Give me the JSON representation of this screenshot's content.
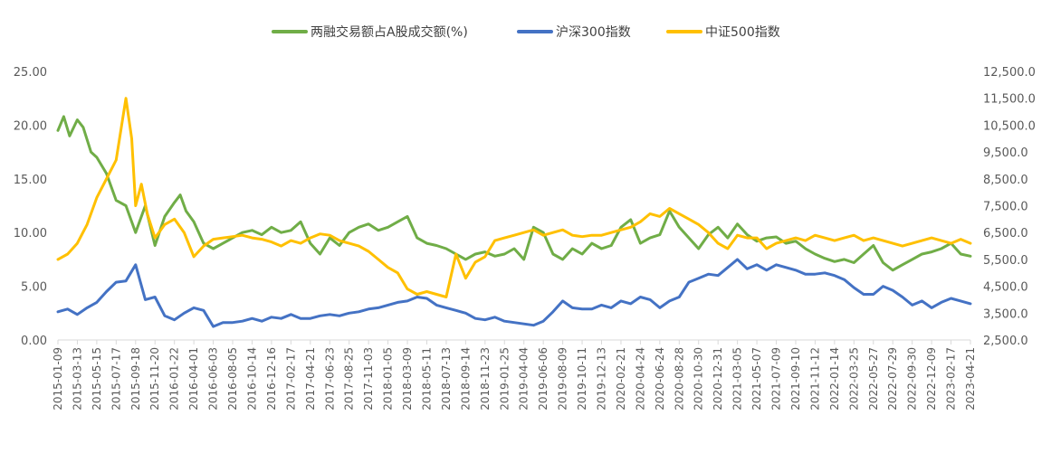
{
  "chart_data": {
    "type": "line",
    "title": "",
    "legend_position": "top-center",
    "grid": false,
    "x_tick_labels": [
      "2015-01-09",
      "2015-03-13",
      "2015-05-15",
      "2015-07-17",
      "2015-09-18",
      "2015-11-20",
      "2016-01-22",
      "2016-04-01",
      "2016-06-03",
      "2016-08-05",
      "2016-10-14",
      "2016-12-16",
      "2017-02-17",
      "2017-04-21",
      "2017-06-23",
      "2017-08-25",
      "2017-11-03",
      "2018-01-05",
      "2018-03-09",
      "2018-05-11",
      "2018-07-13",
      "2018-09-14",
      "2018-11-23",
      "2019-01-25",
      "2019-04-04",
      "2019-06-06",
      "2019-08-09",
      "2019-10-11",
      "2019-12-13",
      "2020-02-21",
      "2020-04-24",
      "2020-06-24",
      "2020-08-28",
      "2020-10-30",
      "2020-12-31",
      "2021-03-05",
      "2021-05-07",
      "2021-07-09",
      "2021-09-10",
      "2021-11-12",
      "2022-01-14",
      "2022-03-25",
      "2022-05-27",
      "2022-07-29",
      "2022-09-30",
      "2022-12-09",
      "2023-02-17",
      "2023-04-21"
    ],
    "y_left": {
      "range": [
        0,
        25
      ],
      "ticks": [
        "0.00",
        "5.00",
        "10.00",
        "15.00",
        "20.00",
        "25.00"
      ],
      "tick_values": [
        0,
        5,
        10,
        15,
        20,
        25
      ]
    },
    "y_right": {
      "range": [
        2500,
        12500
      ],
      "ticks": [
        "2,500.0",
        "3,500.0",
        "4,500.0",
        "5,500.0",
        "6,500.0",
        "7,500.0",
        "8,500.0",
        "9,500.0",
        "10,500.0",
        "11,500.0",
        "12,500.0"
      ],
      "tick_values": [
        2500,
        3500,
        4500,
        5500,
        6500,
        7500,
        8500,
        9500,
        10500,
        11500,
        12500
      ]
    },
    "series": [
      {
        "name": "两融交易额占A股成交额(%)",
        "color": "#70AD47",
        "axis": "left",
        "x": [
          0,
          0.3,
          0.6,
          1,
          1.3,
          1.7,
          2,
          2.5,
          3,
          3.5,
          4,
          4.5,
          5,
          5.5,
          6,
          6.3,
          6.6,
          7,
          7.5,
          8,
          8.5,
          9,
          9.5,
          10,
          10.5,
          11,
          11.5,
          12,
          12.5,
          13,
          13.5,
          14,
          14.5,
          15,
          15.5,
          16,
          16.5,
          17,
          17.5,
          18,
          18.5,
          19,
          19.5,
          20,
          20.5,
          21,
          21.5,
          22,
          22.5,
          23,
          23.5,
          24,
          24.5,
          25,
          25.5,
          26,
          26.5,
          27,
          27.5,
          28,
          28.5,
          29,
          29.5,
          30,
          30.5,
          31,
          31.5,
          32,
          32.5,
          33,
          33.5,
          34,
          34.5,
          35,
          35.5,
          36,
          36.5,
          37,
          37.5,
          38,
          38.5,
          39,
          39.5,
          40,
          40.5,
          41,
          41.5,
          42,
          42.5,
          43,
          43.5,
          44,
          44.5,
          45,
          45.5,
          46,
          46.5,
          47
        ],
        "values": [
          19.5,
          20.8,
          19.0,
          20.5,
          19.8,
          17.5,
          17.0,
          15.5,
          13.0,
          12.5,
          10.0,
          12.5,
          8.8,
          11.5,
          12.8,
          13.5,
          12.0,
          11.0,
          9.0,
          8.5,
          9.0,
          9.5,
          10.0,
          10.2,
          9.8,
          10.5,
          10.0,
          10.2,
          11.0,
          9.0,
          8.0,
          9.5,
          8.8,
          10.0,
          10.5,
          10.8,
          10.2,
          10.5,
          11.0,
          11.5,
          9.5,
          9.0,
          8.8,
          8.5,
          8.0,
          7.5,
          8.0,
          8.2,
          7.8,
          8.0,
          8.5,
          7.5,
          10.5,
          10.0,
          8.0,
          7.5,
          8.5,
          8.0,
          9.0,
          8.5,
          8.8,
          10.5,
          11.2,
          9.0,
          9.5,
          9.8,
          12.0,
          10.5,
          9.5,
          8.5,
          9.8,
          10.5,
          9.5,
          10.8,
          9.8,
          9.2,
          9.5,
          9.6,
          9.0,
          9.2,
          8.5,
          8.0,
          7.6,
          7.3,
          7.5,
          7.2,
          8.0,
          8.8,
          7.2,
          6.5,
          7.0,
          7.5,
          8.0,
          8.2,
          8.5,
          9.0,
          8.0,
          7.8
        ]
      },
      {
        "name": "沪深300指数",
        "color": "#4472C4",
        "axis": "right",
        "x": [
          0,
          0.5,
          1,
          1.5,
          2,
          2.5,
          3,
          3.5,
          4,
          4.5,
          5,
          5.5,
          6,
          6.5,
          7,
          7.5,
          8,
          8.5,
          9,
          9.5,
          10,
          10.5,
          11,
          11.5,
          12,
          12.5,
          13,
          13.5,
          14,
          14.5,
          15,
          15.5,
          16,
          16.5,
          17,
          17.5,
          18,
          18.5,
          19,
          19.5,
          20,
          20.5,
          21,
          21.5,
          22,
          22.5,
          23,
          23.5,
          24,
          24.5,
          25,
          25.5,
          26,
          26.5,
          27,
          27.5,
          28,
          28.5,
          29,
          29.5,
          30,
          30.5,
          31,
          31.5,
          32,
          32.5,
          33,
          33.5,
          34,
          34.5,
          35,
          35.5,
          36,
          36.5,
          37,
          37.5,
          38,
          38.5,
          39,
          39.5,
          40,
          40.5,
          41,
          41.5,
          42,
          42.5,
          43,
          43.5,
          44,
          44.5,
          45,
          45.5,
          46,
          46.5,
          47
        ],
        "values": [
          3550,
          3650,
          3450,
          3700,
          3900,
          4300,
          4650,
          4700,
          5300,
          4000,
          4100,
          3400,
          3250,
          3500,
          3700,
          3600,
          3000,
          3150,
          3150,
          3200,
          3300,
          3200,
          3350,
          3300,
          3450,
          3300,
          3300,
          3400,
          3450,
          3400,
          3500,
          3550,
          3650,
          3700,
          3800,
          3900,
          3950,
          4100,
          4050,
          3800,
          3700,
          3600,
          3500,
          3300,
          3250,
          3350,
          3200,
          3150,
          3100,
          3050,
          3200,
          3550,
          3950,
          3700,
          3650,
          3650,
          3800,
          3700,
          3950,
          3850,
          4100,
          4000,
          3700,
          3950,
          4100,
          4650,
          4800,
          4950,
          4900,
          5200,
          5500,
          5150,
          5300,
          5100,
          5300,
          5200,
          5100,
          4950,
          4950,
          5000,
          4900,
          4750,
          4450,
          4200,
          4200,
          4500,
          4350,
          4100,
          3800,
          3950,
          3700,
          3900,
          4050,
          3950,
          3850
        ]
      },
      {
        "name": "中证500指数",
        "color": "#FFC000",
        "axis": "right",
        "x": [
          0,
          0.5,
          1,
          1.5,
          2,
          2.5,
          3,
          3.5,
          3.8,
          4,
          4.3,
          4.6,
          5,
          5.5,
          6,
          6.5,
          7,
          7.5,
          8,
          8.5,
          9,
          9.5,
          10,
          10.5,
          11,
          11.5,
          12,
          12.5,
          13,
          13.5,
          14,
          14.5,
          15,
          15.5,
          16,
          16.5,
          17,
          17.5,
          18,
          18.5,
          19,
          19.5,
          20,
          20.5,
          21,
          21.5,
          22,
          22.5,
          23,
          23.5,
          24,
          24.5,
          25,
          25.5,
          26,
          26.5,
          27,
          27.5,
          28,
          28.5,
          29,
          29.5,
          30,
          30.5,
          31,
          31.5,
          32,
          32.5,
          33,
          33.5,
          34,
          34.5,
          35,
          35.5,
          36,
          36.5,
          37,
          37.5,
          38,
          38.5,
          39,
          39.5,
          40,
          40.5,
          41,
          41.5,
          42,
          42.5,
          43,
          43.5,
          44,
          44.5,
          45,
          45.5,
          46,
          46.5,
          47
        ],
        "values": [
          5500,
          5700,
          6100,
          6800,
          7800,
          8500,
          9200,
          11500,
          10000,
          7500,
          8300,
          7200,
          6300,
          6800,
          7000,
          6500,
          5600,
          6000,
          6250,
          6300,
          6350,
          6400,
          6300,
          6250,
          6150,
          6000,
          6200,
          6100,
          6300,
          6450,
          6400,
          6200,
          6100,
          6000,
          5800,
          5500,
          5200,
          5000,
          4400,
          4200,
          4300,
          4200,
          4100,
          5700,
          4800,
          5400,
          5600,
          6200,
          6300,
          6400,
          6500,
          6600,
          6400,
          6500,
          6600,
          6400,
          6350,
          6400,
          6400,
          6500,
          6600,
          6700,
          6900,
          7200,
          7100,
          7400,
          7200,
          7000,
          6800,
          6500,
          6100,
          5900,
          6400,
          6300,
          6300,
          5900,
          6100,
          6200,
          6300,
          6200,
          6400,
          6300,
          6200,
          6300,
          6400,
          6200,
          6300,
          6200,
          6100,
          6000,
          6100,
          6200,
          6300,
          6200,
          6100,
          6250,
          6100
        ]
      }
    ]
  }
}
